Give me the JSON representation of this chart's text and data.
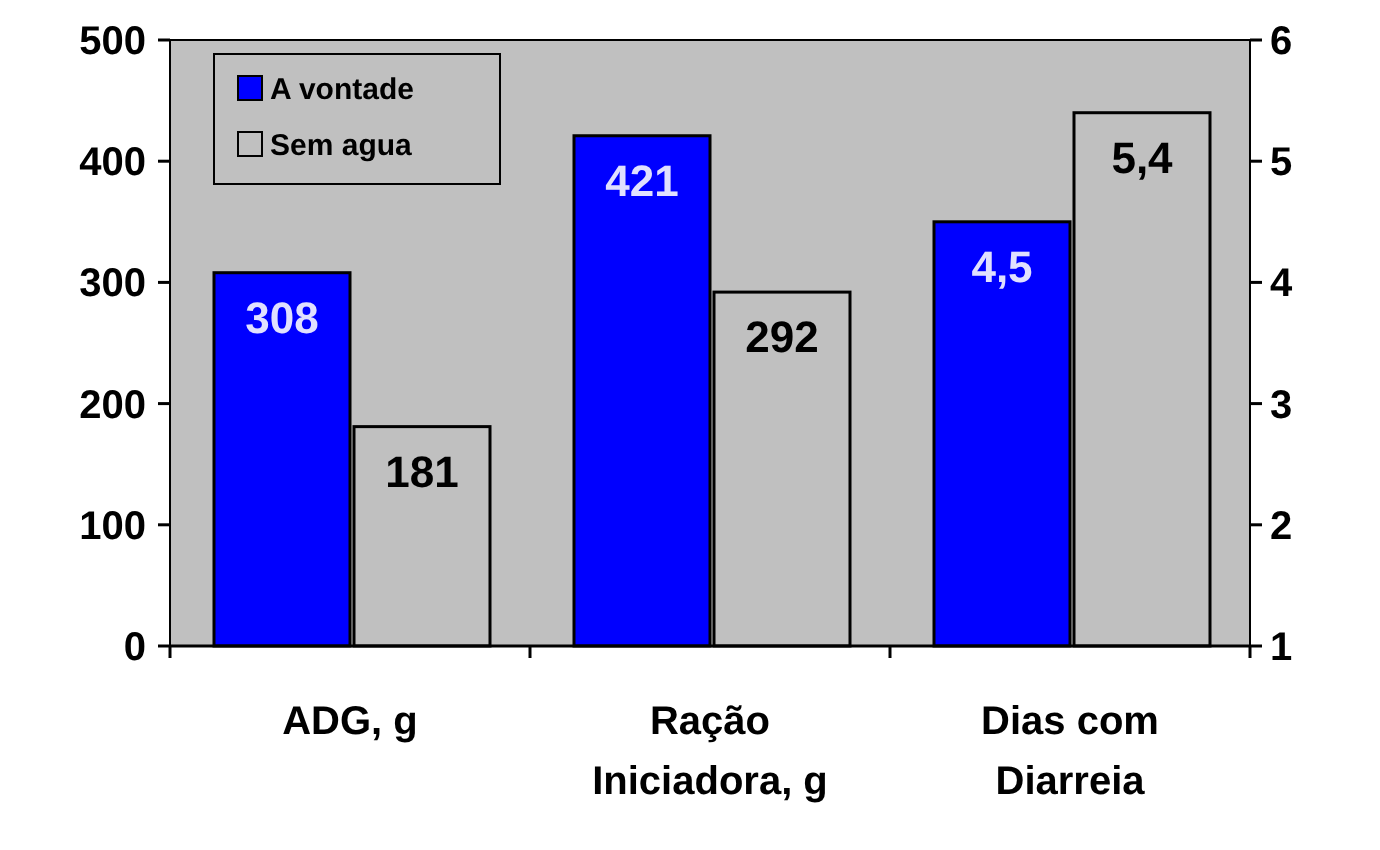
{
  "chart_data": {
    "type": "bar",
    "categories": [
      "ADG, g",
      "Ração Iniciadora, g",
      "Dias com Diarreia"
    ],
    "series": [
      {
        "name": "A vontade",
        "color": "#0000ff",
        "values": [
          308,
          421,
          null
        ]
      },
      {
        "name": "Sem agua",
        "color": "#c0c0c0",
        "values": [
          181,
          292,
          null
        ]
      },
      {
        "color": "#0000ff",
        "values": [
          null,
          null,
          4.5
        ],
        "value_labels": [
          null,
          null,
          "4,5"
        ],
        "axis": "y2"
      },
      {
        "color": "#c0c0c0",
        "values": [
          null,
          null,
          5.4
        ],
        "value_labels": [
          null,
          null,
          "5,4"
        ],
        "axis": "y2"
      }
    ],
    "ylim": [
      0,
      500
    ],
    "yticks": [
      0,
      100,
      200,
      300,
      400,
      500
    ],
    "y2lim": [
      1,
      6
    ],
    "y2ticks": [
      1,
      2,
      3,
      4,
      5,
      6
    ],
    "data_labels": true,
    "grid": false,
    "legend": "top left"
  }
}
